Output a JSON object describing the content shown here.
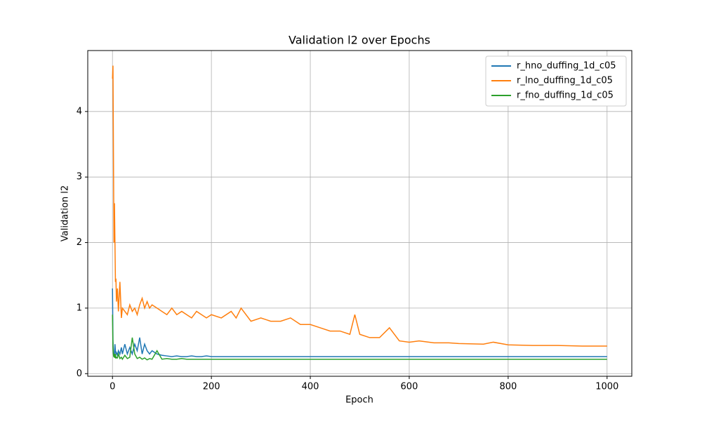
{
  "chart_data": {
    "type": "line",
    "title": "Validation l2 over Epochs",
    "x_label": "Epoch",
    "y_label": "Validation l2",
    "x": [
      0,
      1,
      2,
      3,
      4,
      5,
      6,
      7,
      8,
      10,
      12,
      15,
      18,
      20,
      25,
      30,
      35,
      40,
      45,
      50,
      55,
      60,
      65,
      70,
      75,
      80,
      90,
      100,
      110,
      120,
      130,
      140,
      150,
      160,
      170,
      180,
      190,
      200,
      220,
      240,
      250,
      260,
      280,
      300,
      320,
      340,
      360,
      380,
      400,
      420,
      440,
      460,
      480,
      490,
      500,
      520,
      540,
      560,
      580,
      600,
      620,
      650,
      680,
      700,
      750,
      770,
      800,
      850,
      900,
      950,
      1000
    ],
    "series": [
      {
        "name": "r_hno_duffing_1d_c05",
        "color": "#1f77b4",
        "values": [
          1.3,
          0.5,
          0.3,
          0.28,
          0.3,
          0.45,
          0.35,
          0.3,
          0.32,
          0.28,
          0.35,
          0.3,
          0.4,
          0.3,
          0.45,
          0.3,
          0.4,
          0.3,
          0.45,
          0.35,
          0.55,
          0.3,
          0.45,
          0.35,
          0.3,
          0.35,
          0.3,
          0.28,
          0.27,
          0.26,
          0.27,
          0.26,
          0.26,
          0.27,
          0.26,
          0.26,
          0.27,
          0.26,
          0.26,
          0.26,
          0.26,
          0.26,
          0.26,
          0.26,
          0.26,
          0.26,
          0.26,
          0.26,
          0.26,
          0.26,
          0.26,
          0.26,
          0.26,
          0.26,
          0.26,
          0.26,
          0.26,
          0.26,
          0.26,
          0.26,
          0.26,
          0.26,
          0.26,
          0.26,
          0.26,
          0.26,
          0.26,
          0.26,
          0.26,
          0.26,
          0.26
        ]
      },
      {
        "name": "r_lno_duffing_1d_c05",
        "color": "#ff7f0e",
        "values": [
          4.5,
          4.7,
          3.3,
          2.0,
          2.6,
          2.0,
          1.4,
          1.45,
          1.1,
          1.3,
          0.95,
          1.4,
          0.85,
          1.0,
          0.95,
          0.9,
          1.05,
          0.95,
          1.0,
          0.9,
          1.05,
          1.15,
          1.0,
          1.1,
          1.0,
          1.05,
          1.0,
          0.95,
          0.9,
          1.0,
          0.9,
          0.95,
          0.9,
          0.85,
          0.95,
          0.9,
          0.85,
          0.9,
          0.85,
          0.95,
          0.85,
          1.0,
          0.8,
          0.85,
          0.8,
          0.8,
          0.85,
          0.75,
          0.75,
          0.7,
          0.65,
          0.65,
          0.6,
          0.9,
          0.6,
          0.55,
          0.55,
          0.7,
          0.5,
          0.48,
          0.5,
          0.47,
          0.47,
          0.46,
          0.45,
          0.48,
          0.44,
          0.43,
          0.43,
          0.42,
          0.42
        ]
      },
      {
        "name": "r_fno_duffing_1d_c05",
        "color": "#2ca02c",
        "values": [
          0.9,
          0.4,
          0.28,
          0.25,
          0.3,
          0.24,
          0.3,
          0.23,
          0.25,
          0.24,
          0.3,
          0.23,
          0.25,
          0.22,
          0.28,
          0.23,
          0.25,
          0.55,
          0.3,
          0.23,
          0.25,
          0.22,
          0.24,
          0.21,
          0.23,
          0.22,
          0.35,
          0.22,
          0.23,
          0.22,
          0.22,
          0.23,
          0.22,
          0.22,
          0.22,
          0.22,
          0.22,
          0.22,
          0.22,
          0.22,
          0.22,
          0.22,
          0.22,
          0.22,
          0.22,
          0.22,
          0.22,
          0.22,
          0.22,
          0.22,
          0.22,
          0.22,
          0.22,
          0.22,
          0.22,
          0.22,
          0.22,
          0.22,
          0.22,
          0.22,
          0.22,
          0.22,
          0.22,
          0.22,
          0.22,
          0.22,
          0.22,
          0.22,
          0.22,
          0.22,
          0.22
        ]
      }
    ],
    "xlim": [
      -50,
      1050
    ],
    "ylim": [
      -0.04,
      4.93
    ],
    "xticks": [
      0,
      200,
      400,
      600,
      800,
      1000
    ],
    "yticks": [
      0,
      1,
      2,
      3,
      4
    ],
    "grid": true,
    "legend": "upper right"
  }
}
